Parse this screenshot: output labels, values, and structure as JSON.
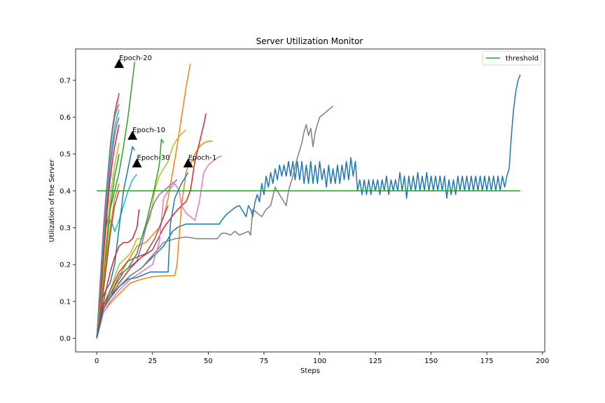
{
  "chart_data": {
    "type": "line",
    "title": "Server Utilization Monitor",
    "xlabel": "Steps",
    "ylabel": "Utilization of the Server",
    "xlim": [
      -9.5,
      201
    ],
    "ylim": [
      -0.037,
      0.785
    ],
    "xticks": [
      0,
      25,
      50,
      75,
      100,
      125,
      150,
      175,
      200
    ],
    "yticks": [
      0.0,
      0.1,
      0.2,
      0.3,
      0.4,
      0.5,
      0.6,
      0.7
    ],
    "grid": false,
    "legend_position": "upper right",
    "threshold": {
      "name": "threshold",
      "y": 0.4,
      "x": [
        0,
        190
      ],
      "color": "#2ca02c"
    },
    "annotations": [
      {
        "label": "Epoch-20",
        "x": 10,
        "y": 0.745
      },
      {
        "label": "Epoch-10",
        "x": 16,
        "y": 0.55
      },
      {
        "label": "Epoch-30",
        "x": 18,
        "y": 0.475
      },
      {
        "label": "Epoch-1",
        "x": 41,
        "y": 0.475
      }
    ],
    "series": [
      {
        "color": "#1f77b4",
        "x": [
          0,
          3,
          6,
          10,
          15,
          20,
          25,
          30,
          32,
          34,
          36,
          38,
          40,
          42,
          44,
          46,
          50,
          55,
          56,
          58,
          60,
          62,
          64,
          66,
          67,
          68,
          69,
          70,
          71,
          72,
          73,
          74,
          75,
          76,
          77,
          78,
          79,
          80,
          81,
          82,
          83,
          84,
          85,
          86,
          87,
          88,
          89,
          90,
          91,
          92,
          93,
          94,
          95,
          96,
          97,
          98,
          99,
          100,
          101,
          102,
          103,
          104,
          105,
          106,
          107,
          108,
          109,
          110,
          111,
          112,
          113,
          114,
          115,
          116,
          117,
          118,
          119,
          120,
          121,
          122,
          123,
          124,
          125,
          126,
          127,
          128,
          129,
          130,
          131,
          132,
          133,
          134,
          135,
          136,
          137,
          138,
          139,
          140,
          141,
          142,
          143,
          144,
          145,
          146,
          147,
          148,
          149,
          150,
          151,
          152,
          153,
          154,
          155,
          156,
          157,
          158,
          159,
          160,
          161,
          162,
          163,
          164,
          165,
          166,
          167,
          168,
          169,
          170,
          171,
          172,
          173,
          174,
          175,
          176,
          177,
          178,
          179,
          180,
          181,
          182,
          183,
          184,
          185,
          186,
          187,
          188,
          189,
          190
        ],
        "y": [
          0,
          0.08,
          0.11,
          0.14,
          0.17,
          0.19,
          0.22,
          0.25,
          0.27,
          0.29,
          0.3,
          0.305,
          0.31,
          0.31,
          0.31,
          0.31,
          0.31,
          0.31,
          0.32,
          0.335,
          0.345,
          0.355,
          0.36,
          0.34,
          0.33,
          0.36,
          0.35,
          0.33,
          0.37,
          0.39,
          0.37,
          0.42,
          0.39,
          0.44,
          0.41,
          0.45,
          0.42,
          0.46,
          0.43,
          0.47,
          0.44,
          0.47,
          0.44,
          0.48,
          0.44,
          0.48,
          0.43,
          0.48,
          0.43,
          0.48,
          0.42,
          0.47,
          0.42,
          0.48,
          0.42,
          0.47,
          0.42,
          0.48,
          0.43,
          0.46,
          0.41,
          0.47,
          0.42,
          0.46,
          0.42,
          0.47,
          0.42,
          0.47,
          0.43,
          0.48,
          0.43,
          0.49,
          0.44,
          0.48,
          0.4,
          0.43,
          0.39,
          0.43,
          0.39,
          0.43,
          0.39,
          0.43,
          0.4,
          0.43,
          0.39,
          0.43,
          0.4,
          0.44,
          0.39,
          0.43,
          0.4,
          0.43,
          0.4,
          0.45,
          0.4,
          0.44,
          0.38,
          0.44,
          0.4,
          0.44,
          0.4,
          0.45,
          0.4,
          0.44,
          0.4,
          0.45,
          0.4,
          0.44,
          0.4,
          0.44,
          0.4,
          0.44,
          0.4,
          0.44,
          0.38,
          0.43,
          0.39,
          0.43,
          0.39,
          0.44,
          0.4,
          0.44,
          0.4,
          0.44,
          0.4,
          0.44,
          0.4,
          0.44,
          0.4,
          0.44,
          0.4,
          0.44,
          0.4,
          0.44,
          0.4,
          0.44,
          0.4,
          0.44,
          0.4,
          0.44,
          0.41,
          0.44,
          0.46,
          0.55,
          0.62,
          0.67,
          0.7,
          0.715
        ]
      },
      {
        "color": "#7f7f7f",
        "x": [
          0,
          3,
          6,
          10,
          15,
          20,
          25,
          30,
          35,
          40,
          45,
          50,
          54,
          56,
          58,
          60,
          62,
          64,
          66,
          68,
          69,
          70,
          72,
          74,
          76,
          78,
          80,
          81,
          82,
          83,
          84,
          85,
          86,
          88,
          90,
          92,
          93,
          94,
          95,
          96,
          97,
          98,
          99,
          100,
          102,
          104,
          106
        ],
        "y": [
          0,
          0.09,
          0.11,
          0.14,
          0.17,
          0.19,
          0.225,
          0.26,
          0.27,
          0.275,
          0.27,
          0.27,
          0.27,
          0.285,
          0.285,
          0.28,
          0.29,
          0.28,
          0.285,
          0.29,
          0.28,
          0.35,
          0.34,
          0.33,
          0.35,
          0.36,
          0.41,
          0.4,
          0.39,
          0.38,
          0.37,
          0.36,
          0.4,
          0.44,
          0.49,
          0.53,
          0.56,
          0.58,
          0.55,
          0.57,
          0.52,
          0.56,
          0.58,
          0.6,
          0.61,
          0.62,
          0.63
        ]
      },
      {
        "color": "#ff7f0e",
        "x": [
          0,
          3,
          6,
          10,
          15,
          20,
          25,
          30,
          35,
          36,
          38,
          40,
          41,
          42,
          44,
          46,
          48,
          50,
          52
        ],
        "y": [
          0,
          0.07,
          0.095,
          0.12,
          0.15,
          0.16,
          0.167,
          0.17,
          0.17,
          0.2,
          0.36,
          0.45,
          0.47,
          0.47,
          0.5,
          0.52,
          0.53,
          0.535,
          0.535
        ]
      },
      {
        "color": "#d62728",
        "x": [
          0,
          3,
          6,
          10,
          15,
          20,
          25,
          30,
          35,
          38,
          40,
          42,
          44,
          46,
          48,
          49
        ],
        "y": [
          0,
          0.08,
          0.11,
          0.15,
          0.19,
          0.22,
          0.24,
          0.3,
          0.34,
          0.36,
          0.37,
          0.4,
          0.48,
          0.53,
          0.58,
          0.61
        ]
      },
      {
        "color": "#e377c2",
        "x": [
          0,
          3,
          6,
          10,
          15,
          20,
          25,
          28,
          30,
          32,
          35,
          37,
          38,
          40,
          42,
          44,
          46,
          48,
          50,
          52,
          54,
          56
        ],
        "y": [
          0,
          0.07,
          0.1,
          0.13,
          0.16,
          0.18,
          0.2,
          0.26,
          0.38,
          0.4,
          0.42,
          0.4,
          0.36,
          0.34,
          0.33,
          0.32,
          0.37,
          0.45,
          0.47,
          0.48,
          0.49,
          0.495
        ]
      },
      {
        "color": "#ff7f0e",
        "x": [
          0,
          3,
          6,
          10,
          15,
          18,
          22,
          25,
          28,
          30,
          32,
          34,
          36,
          38,
          40,
          42
        ],
        "y": [
          0,
          0.08,
          0.12,
          0.17,
          0.22,
          0.25,
          0.26,
          0.28,
          0.3,
          0.33,
          0.38,
          0.45,
          0.52,
          0.6,
          0.68,
          0.745
        ]
      },
      {
        "color": "#bcbd22",
        "x": [
          0,
          3,
          6,
          10,
          15,
          18,
          20,
          22,
          24,
          26,
          28,
          30,
          32,
          34,
          36,
          38,
          40
        ],
        "y": [
          0,
          0.09,
          0.13,
          0.2,
          0.23,
          0.27,
          0.27,
          0.3,
          0.33,
          0.4,
          0.44,
          0.46,
          0.48,
          0.52,
          0.54,
          0.555,
          0.565
        ]
      },
      {
        "color": "#9467bd",
        "x": [
          0,
          3,
          6,
          10,
          12,
          14,
          16,
          18,
          20,
          22,
          24,
          26,
          28,
          30,
          32,
          34,
          36
        ],
        "y": [
          0,
          0.08,
          0.11,
          0.17,
          0.18,
          0.19,
          0.2,
          0.21,
          0.25,
          0.3,
          0.34,
          0.37,
          0.39,
          0.4,
          0.41,
          0.42,
          0.43
        ]
      },
      {
        "color": "#2ca02c",
        "x": [
          0,
          3,
          6,
          8,
          10,
          12,
          14,
          16,
          18,
          20,
          22,
          24,
          26,
          28,
          29,
          30
        ],
        "y": [
          0,
          0.09,
          0.12,
          0.14,
          0.16,
          0.18,
          0.19,
          0.21,
          0.23,
          0.27,
          0.31,
          0.36,
          0.41,
          0.47,
          0.54,
          0.53
        ]
      },
      {
        "color": "#17becf",
        "x": [
          0,
          2,
          3,
          4,
          5,
          6,
          7,
          8,
          10,
          12,
          14,
          16,
          18
        ],
        "y": [
          0,
          0.1,
          0.15,
          0.25,
          0.3,
          0.32,
          0.31,
          0.29,
          0.32,
          0.36,
          0.4,
          0.43,
          0.445
        ]
      },
      {
        "color": "#2ca02c",
        "x": [
          0,
          2,
          4,
          6,
          8,
          10,
          12,
          14,
          16,
          17
        ],
        "y": [
          0,
          0.15,
          0.3,
          0.35,
          0.4,
          0.45,
          0.52,
          0.6,
          0.7,
          0.75
        ]
      },
      {
        "color": "#1f77b4",
        "x": [
          0,
          2,
          4,
          6,
          8,
          10,
          12,
          14,
          16,
          17
        ],
        "y": [
          0,
          0.1,
          0.13,
          0.15,
          0.2,
          0.3,
          0.4,
          0.46,
          0.52,
          0.51
        ]
      },
      {
        "color": "#8c564b",
        "x": [
          0,
          1,
          2,
          3,
          4,
          5,
          6,
          7,
          8,
          9,
          10
        ],
        "y": [
          0,
          0.1,
          0.2,
          0.3,
          0.38,
          0.45,
          0.52,
          0.57,
          0.61,
          0.64,
          0.665
        ]
      },
      {
        "color": "#e377c2",
        "x": [
          0,
          1,
          2,
          3,
          4,
          5,
          6,
          7,
          8,
          9,
          10
        ],
        "y": [
          0,
          0.08,
          0.18,
          0.28,
          0.36,
          0.44,
          0.51,
          0.56,
          0.6,
          0.63,
          0.66
        ]
      },
      {
        "color": "#7f7f7f",
        "x": [
          0,
          1,
          2,
          3,
          4,
          5,
          6,
          7,
          8,
          9,
          10
        ],
        "y": [
          0,
          0.09,
          0.19,
          0.29,
          0.37,
          0.45,
          0.51,
          0.56,
          0.6,
          0.62,
          0.635
        ]
      },
      {
        "color": "#17becf",
        "x": [
          0,
          1,
          2,
          3,
          4,
          5,
          6,
          7,
          8,
          9,
          10
        ],
        "y": [
          0,
          0.07,
          0.16,
          0.26,
          0.34,
          0.42,
          0.48,
          0.53,
          0.57,
          0.6,
          0.62
        ]
      },
      {
        "color": "#9467bd",
        "x": [
          0,
          1,
          2,
          3,
          4,
          5,
          6,
          7,
          8,
          9,
          10
        ],
        "y": [
          0,
          0.06,
          0.15,
          0.24,
          0.33,
          0.4,
          0.46,
          0.51,
          0.55,
          0.58,
          0.6
        ]
      },
      {
        "color": "#d62728",
        "x": [
          0,
          1,
          2,
          3,
          4,
          5,
          6,
          7,
          8,
          9,
          10
        ],
        "y": [
          0,
          0.05,
          0.13,
          0.22,
          0.3,
          0.37,
          0.43,
          0.48,
          0.52,
          0.55,
          0.58
        ]
      },
      {
        "color": "#bcbd22",
        "x": [
          0,
          2,
          4,
          6,
          8,
          10
        ],
        "y": [
          0,
          0.1,
          0.25,
          0.38,
          0.47,
          0.53
        ]
      },
      {
        "color": "#2ca02c",
        "x": [
          0,
          2,
          4,
          6,
          8,
          10
        ],
        "y": [
          0,
          0.09,
          0.22,
          0.35,
          0.44,
          0.5
        ]
      },
      {
        "color": "#ff7f0e",
        "x": [
          0,
          2,
          4,
          6,
          8,
          10
        ],
        "y": [
          0,
          0.08,
          0.2,
          0.3,
          0.38,
          0.42
        ]
      },
      {
        "color": "#8c564b",
        "x": [
          0,
          2,
          4,
          6,
          8,
          10
        ],
        "y": [
          0,
          0.08,
          0.18,
          0.28,
          0.36,
          0.4
        ]
      },
      {
        "color": "#d62728",
        "x": [
          0,
          3,
          6,
          8,
          10,
          12,
          14,
          16,
          18,
          19
        ],
        "y": [
          0,
          0.1,
          0.18,
          0.22,
          0.25,
          0.26,
          0.26,
          0.27,
          0.3,
          0.35
        ]
      },
      {
        "color": "#8c564b",
        "x": [
          0,
          3,
          6,
          10,
          14,
          18,
          22,
          24,
          26,
          28,
          30,
          32
        ],
        "y": [
          0,
          0.09,
          0.13,
          0.18,
          0.21,
          0.22,
          0.23,
          0.25,
          0.27,
          0.3,
          0.33,
          0.36
        ]
      },
      {
        "color": "#1f77b4",
        "x": [
          0,
          3,
          6,
          10,
          14,
          18,
          20,
          24,
          28,
          32,
          33,
          35,
          38,
          40,
          41
        ],
        "y": [
          0,
          0.08,
          0.11,
          0.14,
          0.16,
          0.165,
          0.17,
          0.18,
          0.18,
          0.18,
          0.31,
          0.38,
          0.42,
          0.44,
          0.45
        ]
      }
    ]
  }
}
